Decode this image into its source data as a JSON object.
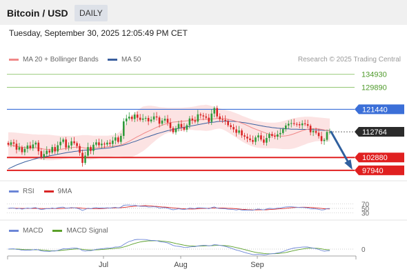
{
  "header": {
    "pair": "Bitcoin / USD",
    "timeframe": "DAILY"
  },
  "timestamp": "Tuesday, September 30, 2025 12:05:49 PM CET",
  "credit": "Research © 2025 Trading Central",
  "colors": {
    "ma20": "#f08888",
    "bollinger_fill": "#fbd9d9",
    "ma50": "#3a5f9e",
    "resistance": "#8cc36a",
    "pivot": "#3b6fd8",
    "support": "#e02020",
    "up_candle": "#2e9a3a",
    "down_candle": "#d92525",
    "arrow": "#2f5f9e",
    "rsi": "#6b85d6",
    "rsi_ma": "#d92525",
    "macd": "#6b85d6",
    "macd_signal": "#5aa02a"
  },
  "chart_data": [
    {
      "type": "candlestick",
      "legend": [
        {
          "name": "MA 20 + Bollinger Bands",
          "color": "#f08888"
        },
        {
          "name": "MA 50",
          "color": "#3a5f9e"
        }
      ],
      "ylim": [
        95500,
        137500
      ],
      "x_ticks": [
        "Jul",
        "Aug",
        "Sep"
      ],
      "last_price": "112764",
      "levels": [
        {
          "value": 134930,
          "label": "134930",
          "kind": "resistance"
        },
        {
          "value": 129890,
          "label": "129890",
          "kind": "resistance"
        },
        {
          "value": 121440,
          "label": "121440",
          "kind": "pivot"
        },
        {
          "value": 102880,
          "label": "102880",
          "kind": "support"
        },
        {
          "value": 97940,
          "label": "97940",
          "kind": "support"
        }
      ],
      "closes": [
        107800,
        108700,
        108200,
        105900,
        106800,
        104900,
        106200,
        107500,
        106400,
        107900,
        108600,
        105300,
        102900,
        104200,
        105500,
        104800,
        106900,
        105200,
        107600,
        108900,
        109800,
        106700,
        107500,
        109100,
        108400,
        107300,
        104700,
        100800,
        103600,
        106900,
        105400,
        107800,
        108700,
        107600,
        108200,
        107900,
        108600,
        108100,
        109400,
        110600,
        108900,
        111200,
        116800,
        117900,
        118600,
        117700,
        119400,
        118200,
        117400,
        117900,
        118100,
        116800,
        117500,
        118700,
        118300,
        115900,
        117100,
        117800,
        116300,
        114200,
        112600,
        114100,
        115800,
        114500,
        113600,
        115300,
        117900,
        117200,
        116700,
        119500,
        119100,
        118700,
        118200,
        116600,
        119800,
        121900,
        118700,
        117600,
        117400,
        116900,
        115300,
        114600,
        113700,
        112400,
        113300,
        111400,
        110900,
        110200,
        109600,
        108900,
        110600,
        111400,
        109800,
        108600,
        110400,
        111900,
        111200,
        110900,
        111800,
        112300,
        113800,
        115200,
        115900,
        116100,
        115800,
        115700,
        115300,
        116000,
        115700,
        115100,
        112600,
        113100,
        112400,
        111100,
        109200,
        109700,
        112700,
        112764
      ],
      "opens": [
        108500,
        107800,
        108700,
        108200,
        105900,
        106800,
        104900,
        106200,
        107500,
        106400,
        107900,
        108600,
        105300,
        102900,
        104200,
        105500,
        104800,
        106900,
        105200,
        107600,
        108900,
        109800,
        106700,
        107500,
        109100,
        108400,
        107300,
        104700,
        100800,
        103600,
        106900,
        105400,
        107800,
        108700,
        107600,
        108200,
        107900,
        108600,
        108100,
        109400,
        110600,
        108900,
        111200,
        116800,
        117900,
        118600,
        117700,
        119400,
        118200,
        117400,
        117900,
        118100,
        116800,
        117500,
        118700,
        118300,
        115900,
        117100,
        117800,
        116300,
        114200,
        112600,
        114100,
        115800,
        114500,
        113600,
        115300,
        117900,
        117200,
        116700,
        119500,
        119100,
        118700,
        118200,
        116600,
        119800,
        121900,
        118700,
        117600,
        117400,
        116900,
        115300,
        114600,
        113700,
        112400,
        113300,
        111400,
        110900,
        110200,
        109600,
        108900,
        110600,
        111400,
        109800,
        108600,
        110400,
        111900,
        111200,
        110900,
        111800,
        112300,
        113800,
        115200,
        115900,
        116100,
        115800,
        115700,
        115300,
        116000,
        115700,
        115100,
        112600,
        113100,
        112400,
        111100,
        109200,
        109700,
        112700
      ],
      "ma20": [
        107800,
        107600,
        107400,
        107200,
        107000,
        106800,
        106700,
        106600,
        106600,
        106600,
        106600,
        106500,
        106300,
        106100,
        106000,
        105900,
        105800,
        105800,
        105900,
        106000,
        106200,
        106300,
        106500,
        106700,
        106800,
        106900,
        106900,
        106700,
        106500,
        106400,
        106400,
        106500,
        106600,
        106700,
        106800,
        106900,
        107000,
        107100,
        107200,
        107400,
        107500,
        107700,
        108100,
        108600,
        109100,
        109700,
        110300,
        110900,
        111400,
        112000,
        112500,
        113000,
        113500,
        114000,
        114500,
        114900,
        115300,
        115700,
        116000,
        116300,
        116500,
        116600,
        116700,
        116800,
        116900,
        117000,
        117100,
        117200,
        117300,
        117400,
        117500,
        117600,
        117600,
        117600,
        117700,
        117800,
        117900,
        117900,
        117900,
        117800,
        117600,
        117400,
        117100,
        116800,
        116500,
        116100,
        115700,
        115200,
        114700,
        114200,
        113800,
        113400,
        113000,
        112600,
        112200,
        111900,
        111600,
        111400,
        111200,
        111100,
        111100,
        111200,
        111400,
        111700,
        112000,
        112400,
        112800,
        113200,
        113500,
        113800,
        113900,
        114000,
        114000,
        113900,
        113700,
        113500,
        113300,
        113100
      ],
      "bb_upper": [
        112600,
        112600,
        112500,
        112400,
        112300,
        112200,
        112100,
        112000,
        111900,
        111800,
        111800,
        111700,
        111700,
        111700,
        111700,
        111600,
        111500,
        111400,
        111300,
        111200,
        111200,
        111200,
        111200,
        111200,
        111200,
        111300,
        111400,
        111500,
        111500,
        111500,
        111400,
        111300,
        111300,
        111300,
        111300,
        111300,
        111300,
        111400,
        111500,
        111800,
        112300,
        113200,
        114600,
        116100,
        117500,
        118800,
        120000,
        121000,
        121800,
        122500,
        122700,
        122800,
        122800,
        122700,
        122500,
        122300,
        122200,
        122100,
        122000,
        122000,
        122000,
        122000,
        122000,
        122000,
        122100,
        122200,
        122300,
        122400,
        122600,
        122800,
        123000,
        123100,
        123200,
        123000,
        122700,
        122400,
        122100,
        121800,
        121500,
        121200,
        121000,
        120700,
        120300,
        119900,
        119500,
        119000,
        118600,
        118200,
        117800,
        117400,
        117100,
        116900,
        116700,
        116500,
        116400,
        116300,
        116300,
        116300,
        116400,
        116600,
        116900,
        117200,
        117500,
        117800,
        118000,
        118200,
        118400,
        118500,
        118600,
        118600,
        118600,
        118500,
        118400,
        118300,
        118200,
        118100,
        118000,
        117900
      ],
      "bb_lower": [
        102800,
        102700,
        102600,
        102500,
        102500,
        102400,
        102400,
        102300,
        102300,
        102300,
        102200,
        102100,
        102000,
        101900,
        101800,
        101800,
        101800,
        101900,
        102000,
        102100,
        102300,
        102400,
        102600,
        102800,
        102900,
        102900,
        102800,
        102600,
        102300,
        102100,
        102100,
        102200,
        102400,
        102600,
        102700,
        102900,
        103000,
        103100,
        103200,
        103300,
        103300,
        103200,
        103000,
        102900,
        102900,
        103100,
        103500,
        104000,
        104700,
        105300,
        106100,
        107000,
        108000,
        108900,
        109800,
        110600,
        111300,
        111900,
        112300,
        112600,
        112800,
        113000,
        113100,
        113200,
        113300,
        113400,
        113500,
        113500,
        113400,
        113300,
        113300,
        113200,
        113100,
        113200,
        113400,
        113700,
        113900,
        114000,
        113700,
        113200,
        112600,
        111900,
        111200,
        110500,
        109800,
        109100,
        108500,
        108000,
        107500,
        107100,
        106800,
        106600,
        106500,
        106400,
        106400,
        106400,
        106400,
        106400,
        106300,
        106200,
        106100,
        106100,
        106100,
        106200,
        106400,
        106700,
        107100,
        107500,
        107900,
        108300,
        108600,
        108900,
        109100,
        109200,
        109200,
        109200,
        109100,
        109000
      ],
      "ma50": [
        98500,
        99000,
        99500,
        100000,
        100400,
        100800,
        101200,
        101500,
        101800,
        102100,
        102400,
        102700,
        102900,
        103100,
        103300,
        103500,
        103700,
        103900,
        104100,
        104300,
        104500,
        104700,
        104900,
        105000,
        105200,
        105300,
        105500,
        105600,
        105700,
        105800,
        105900,
        106000,
        106100,
        106200,
        106300,
        106400,
        106500,
        106600,
        106800,
        107000,
        107200,
        107400,
        107700,
        108000,
        108300,
        108700,
        109000,
        109400,
        109800,
        110200,
        110600,
        110900,
        111300,
        111600,
        112000,
        112300,
        112600,
        112900,
        113200,
        113400,
        113700,
        113900,
        114100,
        114300,
        114500,
        114700,
        114900,
        115100,
        115300,
        115500,
        115700,
        115900,
        116100,
        116300,
        116400,
        116500,
        116700,
        116800,
        116800,
        116900,
        116900,
        116800,
        116800,
        116700,
        116600,
        116400,
        116300,
        116100,
        115900,
        115700,
        115500,
        115300,
        115100,
        114900,
        114700,
        114600,
        114400,
        114300,
        114200,
        114100,
        114000,
        113900,
        113900,
        113800,
        113800,
        113800,
        113700,
        113700,
        113700,
        113700,
        113600,
        113600,
        113500,
        113500,
        113400,
        113300,
        113300,
        113200
      ]
    },
    {
      "type": "line",
      "series": [
        {
          "name": "RSI",
          "color": "#6b85d6"
        },
        {
          "name": "9MA",
          "color": "#d92525"
        }
      ],
      "y_ticks": [
        "70",
        "50",
        "30"
      ],
      "ylim": [
        20,
        80
      ]
    },
    {
      "type": "line",
      "series": [
        {
          "name": "MACD",
          "color": "#6b85d6"
        },
        {
          "name": "MACD Signal",
          "color": "#5aa02a"
        }
      ],
      "y_ticks": [
        "0"
      ]
    }
  ]
}
